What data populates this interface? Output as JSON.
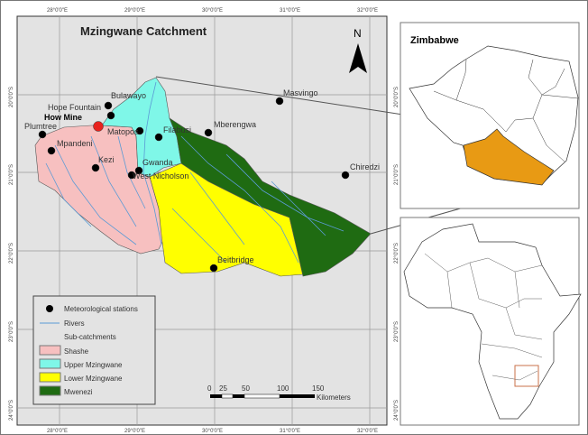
{
  "main_map": {
    "title": "Mzingwane Catchment",
    "north_label": "N",
    "lon_ticks": [
      "28°0'0\"E",
      "29°0'0\"E",
      "30°0'0\"E",
      "31°0'0\"E",
      "32°0'0\"E"
    ],
    "lat_ticks": [
      "20°0'0\"S",
      "21°0'0\"S",
      "22°0'0\"S",
      "23°0'0\"S",
      "24°0'0\"S"
    ],
    "stations": [
      {
        "name": "Bulawayo"
      },
      {
        "name": "Hope Fountain"
      },
      {
        "name": "How Mine",
        "highlight": true
      },
      {
        "name": "Plumtree"
      },
      {
        "name": "Matopos"
      },
      {
        "name": "Filabusi"
      },
      {
        "name": "Mberengwa"
      },
      {
        "name": "Mpandeni"
      },
      {
        "name": "Kezi"
      },
      {
        "name": "Gwanda"
      },
      {
        "name": "West Nicholson"
      },
      {
        "name": "Masvingo"
      },
      {
        "name": "Chiredzi"
      },
      {
        "name": "Beitbridge"
      }
    ],
    "legend": {
      "stations_label": "Meteorological stations",
      "rivers_label": "Rivers",
      "subcatchments_label": "Sub-catchments",
      "subcatchments": [
        {
          "name": "Shashe",
          "color": "#f7c0c0"
        },
        {
          "name": "Upper Mzingwane",
          "color": "#7ff7e8"
        },
        {
          "name": "Lower Mzingwane",
          "color": "#ffff00"
        },
        {
          "name": "Mwenezi",
          "color": "#1f6b12"
        }
      ]
    },
    "scale_bar": {
      "ticks": [
        "0",
        "25",
        "50",
        "100",
        "150"
      ],
      "unit": "Kilometers"
    },
    "river_color": "#5b9bd5",
    "station_color": "#000000",
    "mine_color": "#e8211d"
  },
  "inset_zimbabwe": {
    "title": "Zimbabwe",
    "highlight_color": "#e89a14"
  },
  "inset_africa": {
    "locator_color": "#c8704a"
  }
}
